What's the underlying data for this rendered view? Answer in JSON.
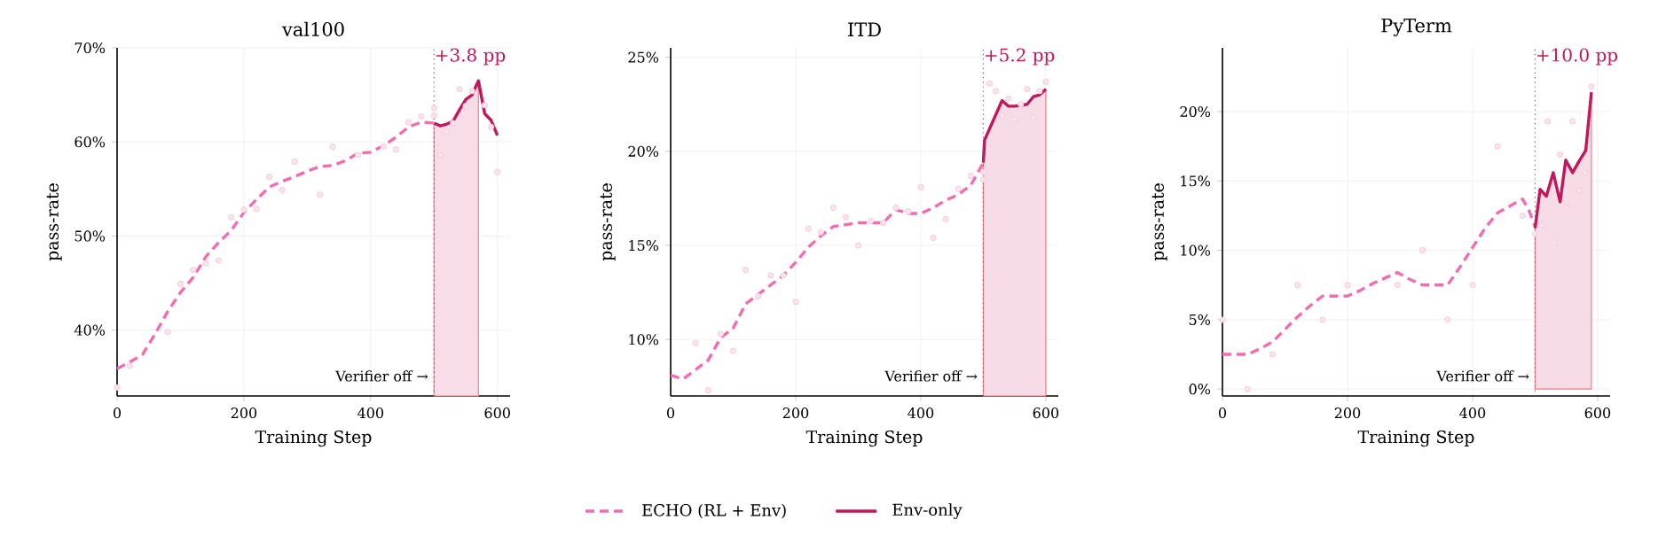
{
  "chart_data": [
    {
      "type": "line",
      "title": "val100",
      "xlabel": "Training Step",
      "ylabel": "pass-rate",
      "xlim": [
        0,
        620
      ],
      "ylim": [
        33,
        70
      ],
      "xticks": [
        0,
        200,
        400,
        600
      ],
      "yticks": [
        {
          "value": 40,
          "label": "40%"
        },
        {
          "value": 50,
          "label": "50%"
        },
        {
          "value": 60,
          "label": "60%"
        },
        {
          "value": 70,
          "label": "70%"
        }
      ],
      "grid": true,
      "legend": "bottom",
      "ref_lines": [
        {
          "axis": "x",
          "value": 500,
          "label": "Verifier off →",
          "color": "#666666",
          "line_style": "dotted"
        }
      ],
      "annotations": [
        "+3.8 pp"
      ],
      "series": [
        {
          "type": "area",
          "color": "#f6dde8",
          "x": [
            500,
            510,
            520,
            530,
            540,
            550,
            560,
            570
          ],
          "values": [
            62.0,
            61.7,
            61.9,
            62.2,
            63.4,
            64.5,
            65.0,
            66.5
          ]
        },
        {
          "type": "scatter",
          "color": "#f4c4d8",
          "marker": "circle",
          "x": [
            0,
            20,
            80,
            100,
            120,
            140,
            160,
            180,
            200,
            220,
            240,
            260,
            280,
            320,
            340,
            380,
            420,
            440,
            460,
            480,
            500,
            500,
            510,
            520,
            530,
            540,
            550,
            560,
            580,
            590,
            600
          ],
          "values": [
            33.9,
            36.2,
            39.8,
            44.9,
            46.4,
            47.1,
            47.4,
            52.0,
            52.8,
            52.9,
            56.3,
            54.9,
            57.9,
            54.4,
            59.5,
            58.6,
            59.5,
            59.2,
            62.1,
            62.7,
            63.6,
            62.8,
            58.6,
            61.1,
            62.0,
            65.6,
            63.8,
            65.4,
            63.9,
            61.6,
            56.8
          ]
        },
        {
          "name": "ECHO (RL + Env)",
          "type": "line",
          "line_style": "dashed",
          "color": "#f06eb0",
          "x": [
            0,
            20,
            40,
            60,
            80,
            100,
            120,
            140,
            160,
            180,
            200,
            220,
            240,
            260,
            280,
            300,
            320,
            340,
            360,
            380,
            400,
            420,
            440,
            460,
            480,
            500
          ],
          "values": [
            35.9,
            36.6,
            37.4,
            39.6,
            42.0,
            44.0,
            45.6,
            47.8,
            49.3,
            50.6,
            52.5,
            53.9,
            55.2,
            55.8,
            56.3,
            56.9,
            57.4,
            57.5,
            58.0,
            58.8,
            58.9,
            59.6,
            60.5,
            61.6,
            62.1,
            62.0
          ]
        },
        {
          "name": "Env-only",
          "type": "line",
          "line_style": "solid",
          "color": "#c2185b",
          "x": [
            500,
            510,
            520,
            530,
            540,
            550,
            560,
            570,
            580,
            590,
            600
          ],
          "values": [
            62.0,
            61.7,
            61.9,
            62.2,
            63.4,
            64.5,
            65.0,
            66.5,
            63.0,
            62.3,
            60.7
          ]
        }
      ]
    },
    {
      "type": "line",
      "title": "ITD",
      "xlabel": "Training Step",
      "ylabel": "pass-rate",
      "xlim": [
        0,
        620
      ],
      "ylim": [
        7,
        25.5
      ],
      "xticks": [
        0,
        200,
        400,
        600
      ],
      "yticks": [
        {
          "value": 10,
          "label": "10%"
        },
        {
          "value": 15,
          "label": "15%"
        },
        {
          "value": 20,
          "label": "20%"
        },
        {
          "value": 25,
          "label": "25%"
        }
      ],
      "grid": true,
      "ref_lines": [
        {
          "axis": "x",
          "value": 500,
          "label": "Verifier off →",
          "color": "#666666",
          "line_style": "dotted"
        }
      ],
      "annotations": [
        "+5.2 pp"
      ],
      "series": [
        {
          "type": "scatter",
          "color": "#f4c4d8",
          "marker": "circle",
          "x": [
            40,
            60,
            80,
            100,
            120,
            140,
            160,
            180,
            200,
            220,
            240,
            260,
            280,
            300,
            320,
            340,
            360,
            380,
            400,
            420,
            440,
            460,
            480,
            500,
            500,
            510,
            520,
            530,
            540,
            550,
            560,
            570,
            580,
            590,
            600
          ],
          "values": [
            9.8,
            7.3,
            10.3,
            9.4,
            13.7,
            12.3,
            13.4,
            13.4,
            12.0,
            15.9,
            15.7,
            17.0,
            16.5,
            15.0,
            16.3,
            16.2,
            17.0,
            16.8,
            18.1,
            15.4,
            16.4,
            18.0,
            18.7,
            18.9,
            18.5,
            23.6,
            23.2,
            21.9,
            22.8,
            21.7,
            22.5,
            23.3,
            21.8,
            23.2,
            23.7
          ]
        },
        {
          "type": "line",
          "line_style": "dashed",
          "color": "#f06eb0",
          "x": [
            0,
            20,
            40,
            60,
            80,
            100,
            120,
            140,
            160,
            180,
            200,
            220,
            240,
            260,
            280,
            300,
            320,
            340,
            360,
            380,
            400,
            420,
            440,
            460,
            480,
            500
          ],
          "values": [
            8.1,
            7.9,
            8.4,
            8.9,
            10.1,
            10.6,
            11.9,
            12.4,
            12.9,
            13.4,
            14.1,
            14.9,
            15.5,
            16.0,
            16.1,
            16.2,
            16.2,
            16.2,
            16.9,
            16.7,
            16.7,
            17.0,
            17.4,
            17.7,
            18.2,
            19.4
          ]
        },
        {
          "type": "area",
          "line_style": "solid",
          "color": "#c2185b",
          "x": [
            500,
            502,
            530,
            540,
            550,
            570,
            580,
            590,
            600
          ],
          "values": [
            19.4,
            20.6,
            22.7,
            22.4,
            22.4,
            22.5,
            22.9,
            23.0,
            23.3
          ]
        }
      ]
    },
    {
      "type": "line",
      "title": "PyTerm",
      "xlabel": "Training Step",
      "ylabel": "pass-rate",
      "xlim": [
        0,
        620
      ],
      "ylim": [
        -0.5,
        24.6
      ],
      "xticks": [
        0,
        200,
        400,
        600
      ],
      "yticks": [
        {
          "value": 0,
          "label": "0%"
        },
        {
          "value": 5,
          "label": "5%"
        },
        {
          "value": 10,
          "label": "10%"
        },
        {
          "value": 15,
          "label": "15%"
        },
        {
          "value": 20,
          "label": "20%"
        }
      ],
      "grid": true,
      "ref_lines": [
        {
          "axis": "x",
          "value": 500,
          "label": "Verifier off →",
          "color": "#666666",
          "line_style": "dotted"
        }
      ],
      "annotations": [
        "+10.0 pp"
      ],
      "series": [
        {
          "type": "scatter",
          "color": "#f4c4d8",
          "marker": "circle",
          "x": [
            0,
            40,
            80,
            120,
            160,
            200,
            280,
            320,
            360,
            400,
            440,
            480,
            500,
            510,
            520,
            530,
            540,
            550,
            560,
            570,
            580,
            590
          ],
          "values": [
            5.0,
            0.0,
            2.5,
            7.5,
            5.0,
            7.5,
            7.5,
            10.0,
            5.0,
            7.5,
            17.5,
            12.5,
            11.2,
            11.8,
            19.3,
            10.6,
            16.9,
            13.1,
            19.3,
            14.3,
            15.6,
            21.8
          ]
        },
        {
          "type": "line",
          "line_style": "dashed",
          "color": "#f06eb0",
          "x": [
            0,
            20,
            40,
            60,
            80,
            100,
            120,
            140,
            160,
            180,
            200,
            220,
            240,
            260,
            280,
            300,
            320,
            340,
            360,
            380,
            400,
            420,
            440,
            460,
            480,
            490,
            500
          ],
          "values": [
            2.5,
            2.5,
            2.5,
            2.9,
            3.4,
            4.3,
            5.2,
            6.0,
            6.7,
            6.7,
            6.7,
            7.1,
            7.6,
            8.0,
            8.4,
            7.9,
            7.5,
            7.5,
            7.5,
            8.8,
            10.2,
            11.6,
            12.7,
            13.2,
            13.7,
            12.9,
            11.7
          ]
        },
        {
          "type": "area",
          "line_style": "solid",
          "color": "#c2185b",
          "x": [
            500,
            508,
            518,
            529,
            540,
            549,
            560,
            570,
            581,
            590
          ],
          "values": [
            11.6,
            14.4,
            13.9,
            15.6,
            13.5,
            16.5,
            15.6,
            16.4,
            17.2,
            21.4
          ]
        }
      ]
    }
  ]
}
